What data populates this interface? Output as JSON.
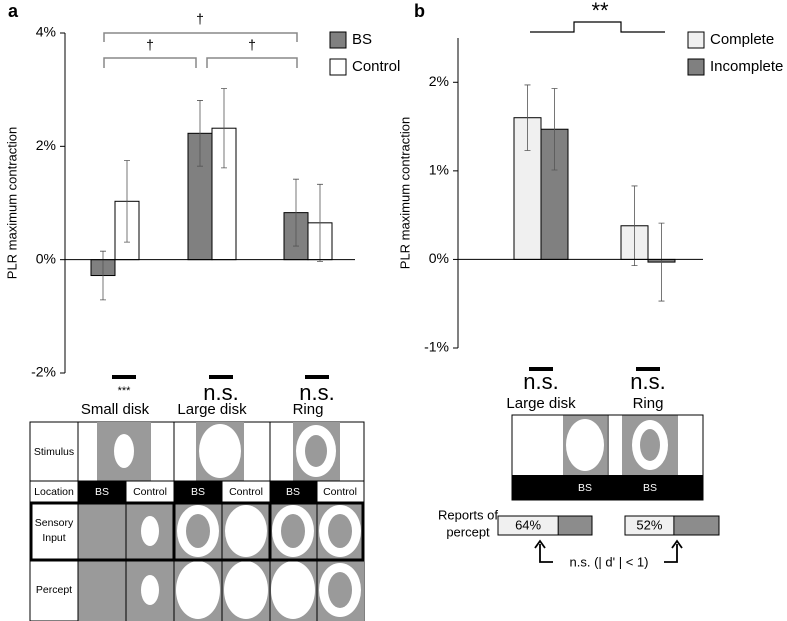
{
  "panels": [
    "a",
    "b"
  ],
  "chart_data": [
    {
      "type": "bar",
      "y_label": "PLR maximum contraction",
      "categories": [
        "Small disk",
        "Large disk",
        "Ring"
      ],
      "series": [
        {
          "name": "BS",
          "color": "#808080",
          "values": [
            -0.28,
            2.23,
            0.83
          ],
          "errors": [
            0.43,
            0.58,
            0.59
          ]
        },
        {
          "name": "Control",
          "color": "#ffffff",
          "values": [
            1.03,
            2.32,
            0.65
          ],
          "errors": [
            0.72,
            0.7,
            0.68
          ]
        }
      ],
      "ylim": [
        -2,
        4
      ],
      "yticks": [
        {
          "value": -2,
          "label": "-2%"
        },
        {
          "value": 0,
          "label": "0%"
        },
        {
          "value": 2,
          "label": "2%"
        },
        {
          "value": 4,
          "label": "4%"
        }
      ],
      "grid": false,
      "legend": "upper right",
      "significance": [
        "†",
        "†",
        "†"
      ],
      "below_labels": [
        "***",
        "n.s.",
        "n.s."
      ]
    },
    {
      "type": "bar",
      "y_label": "PLR maximum contraction",
      "categories": [
        "Large disk",
        "Ring"
      ],
      "series": [
        {
          "name": "Complete",
          "color": "#f0f0f0",
          "values": [
            1.6,
            0.38
          ],
          "errors": [
            0.37,
            0.45
          ]
        },
        {
          "name": "Incomplete",
          "color": "#808080",
          "values": [
            1.47,
            -0.03
          ],
          "errors": [
            0.46,
            0.44
          ]
        }
      ],
      "ylim": [
        -1,
        2.5
      ],
      "yticks": [
        {
          "value": -1,
          "label": "-1%"
        },
        {
          "value": 0,
          "label": "0%"
        },
        {
          "value": 1,
          "label": "1%"
        },
        {
          "value": 2,
          "label": "2%"
        }
      ],
      "grid": false,
      "legend": "upper right",
      "significance": [
        "**"
      ],
      "below_labels": [
        "n.s.",
        "n.s."
      ]
    }
  ],
  "diagram_a": {
    "row_labels": [
      [
        "Stimulus"
      ],
      [
        "Location"
      ],
      [
        "Sensory",
        "Input"
      ],
      [
        "Percept"
      ]
    ],
    "locations": [
      "BS",
      "Control",
      "BS",
      "Control",
      "BS",
      "Control"
    ]
  },
  "diagram_b": {
    "locations": [
      "BS",
      "BS"
    ],
    "reports_label": [
      "Reports of",
      "percept"
    ],
    "reports": [
      {
        "value": 64,
        "label": "64%"
      },
      {
        "value": 52,
        "label": "52%"
      }
    ],
    "comparison": "n.s. (| d' | < 1)"
  }
}
